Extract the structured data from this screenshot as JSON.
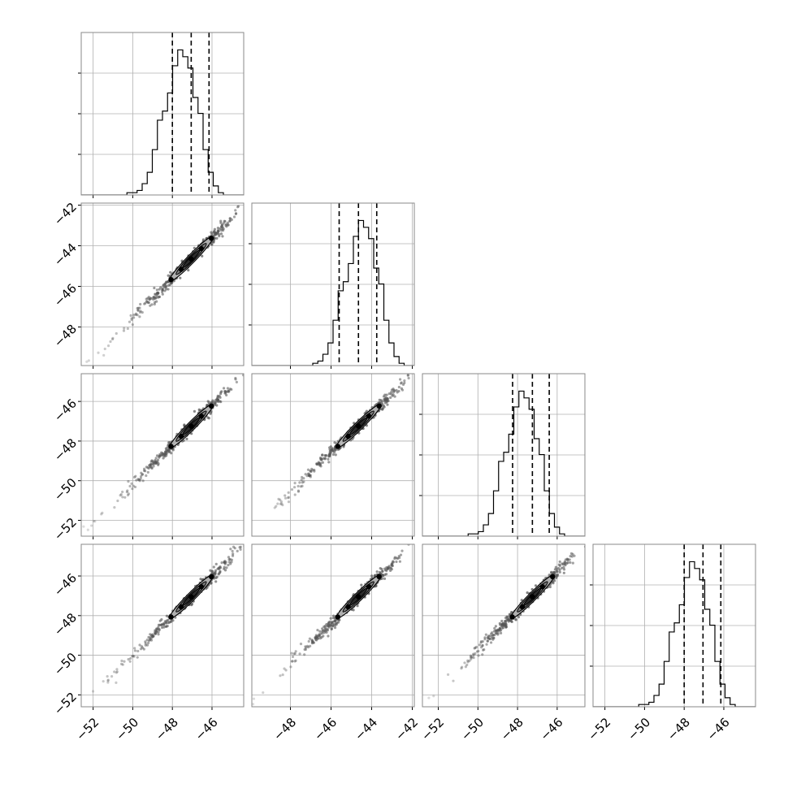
{
  "chart_data": {
    "type": "corner",
    "colors": {
      "line": "#000000",
      "grid": "#b0b0b0",
      "frame": "#888888",
      "scatter": "#555555"
    },
    "grid": true,
    "quantile_lines": "dashed",
    "params": [
      {
        "range": [
          -52.6,
          -44.4
        ],
        "ticks": [
          -52,
          -50,
          -48,
          -46
        ],
        "tick_labels": [
          "−52",
          "−50",
          "−48",
          "−46"
        ],
        "quantiles": [
          -48.0,
          -47.05,
          -46.15
        ],
        "hist_counts": [
          0,
          0,
          0,
          0,
          0,
          0,
          0,
          0,
          0,
          1,
          1,
          2,
          5,
          10,
          20,
          33,
          37,
          45,
          57,
          64,
          61,
          56,
          43,
          36,
          20,
          10,
          4,
          1,
          0,
          0,
          0,
          0
        ]
      },
      {
        "range": [
          -49.9,
          -41.9
        ],
        "ticks": [
          -48,
          -46,
          -44,
          -42
        ],
        "tick_labels": [
          "−48",
          "−46",
          "−44",
          "−42"
        ],
        "quantiles": [
          -45.6,
          -44.65,
          -43.75
        ],
        "hist_counts": [
          0,
          0,
          0,
          0,
          0,
          0,
          0,
          0,
          0,
          0,
          0,
          0,
          1,
          2,
          5,
          10,
          20,
          33,
          37,
          45,
          57,
          64,
          61,
          56,
          43,
          36,
          20,
          10,
          4,
          1,
          0,
          0
        ]
      },
      {
        "range": [
          -52.8,
          -44.6
        ],
        "ticks": [
          -52,
          -50,
          -48,
          -46
        ],
        "tick_labels": [
          "−52",
          "−50",
          "−48",
          "−46"
        ],
        "quantiles": [
          -48.25,
          -47.25,
          -46.4
        ],
        "hist_counts": [
          0,
          0,
          0,
          0,
          0,
          0,
          0,
          0,
          0,
          1,
          1,
          2,
          5,
          10,
          20,
          33,
          37,
          45,
          57,
          64,
          61,
          56,
          43,
          36,
          20,
          10,
          4,
          1,
          0,
          0,
          0,
          0
        ]
      },
      {
        "range": [
          -52.6,
          -44.4
        ],
        "ticks": [
          -52,
          -50,
          -48,
          -46
        ],
        "tick_labels": [
          "−52",
          "−50",
          "−48",
          "−46"
        ],
        "quantiles": [
          -48.0,
          -47.05,
          -46.15
        ],
        "hist_counts": [
          0,
          0,
          0,
          0,
          0,
          0,
          0,
          0,
          0,
          1,
          1,
          2,
          5,
          10,
          20,
          33,
          37,
          45,
          57,
          64,
          61,
          56,
          43,
          36,
          20,
          10,
          4,
          1,
          0,
          0,
          0,
          0
        ]
      }
    ]
  }
}
